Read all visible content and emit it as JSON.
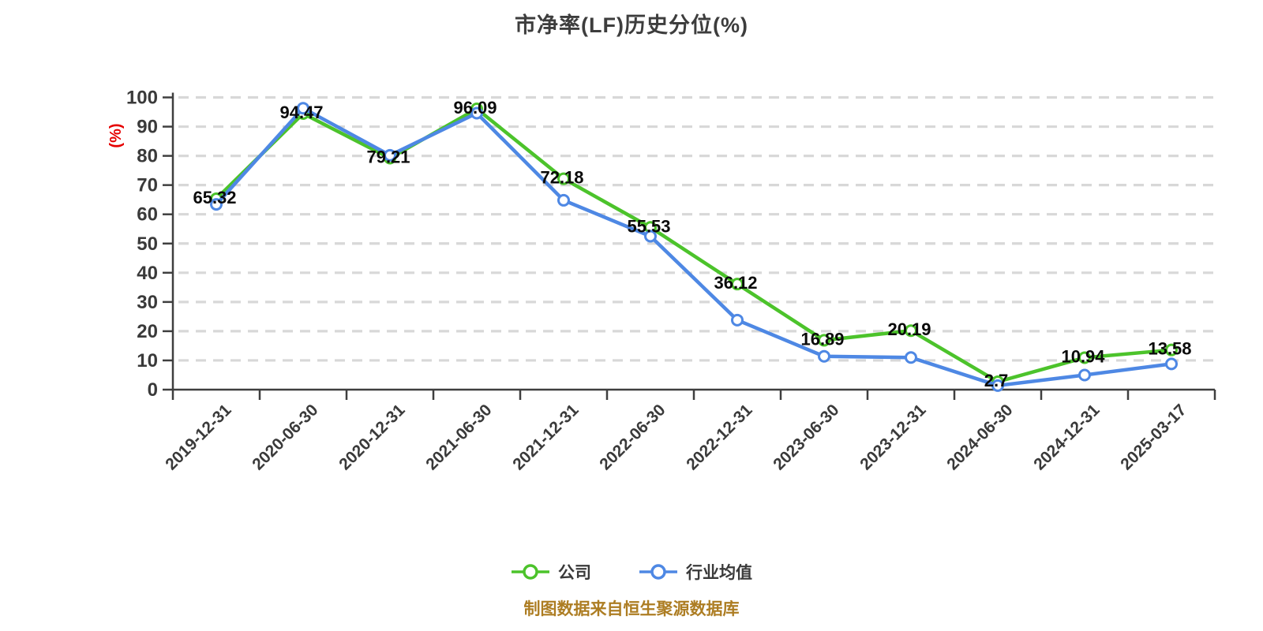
{
  "page": {
    "background": "#ffffff"
  },
  "chart_data": {
    "type": "line",
    "title": "市净率(LF)历史分位(%)",
    "title_color": "#3d3d3d",
    "ylabel": "(%)",
    "ylabel_color": "#e60000",
    "xlabel": "",
    "ylim": [
      0,
      100
    ],
    "yticks": [
      0,
      10,
      20,
      30,
      40,
      50,
      60,
      70,
      80,
      90,
      100
    ],
    "grid": {
      "horizontal_dashed": true,
      "color": "#d8d8d8"
    },
    "axis_color": "#3f3f3f",
    "tick_label_color": "#3a3a3a",
    "datalabel_color": "#0a0a0a",
    "legend_position": "bottom",
    "categories": [
      "2019-12-31",
      "2020-06-30",
      "2020-12-31",
      "2021-06-30",
      "2021-12-31",
      "2022-06-30",
      "2022-12-31",
      "2023-06-30",
      "2023-12-31",
      "2024-06-30",
      "2024-12-31",
      "2025-03-17"
    ],
    "series": [
      {
        "name": "公司",
        "color": "#4cc32b",
        "marker": "circle-white-fill",
        "show_point_labels": true,
        "values": [
          65.32,
          94.47,
          79.21,
          96.09,
          72.18,
          55.53,
          36.12,
          16.89,
          20.19,
          2.7,
          10.94,
          13.58
        ],
        "point_labels": [
          "65.32",
          "94.47",
          "79.21",
          "96.09",
          "72.18",
          "55.53",
          "36.12",
          "16.89",
          "20.19",
          "2.7",
          "10.94",
          "13.58"
        ]
      },
      {
        "name": "行业均值",
        "color": "#4e88e4",
        "marker": "circle-white-fill",
        "show_point_labels": false,
        "values": [
          63.4,
          96.3,
          80.2,
          94.6,
          64.8,
          52.5,
          23.8,
          11.4,
          11.0,
          1.4,
          5.0,
          8.8
        ]
      }
    ]
  },
  "footer": {
    "text": "制图数据来自恒生聚源数据库",
    "color": "#ad7d23"
  }
}
